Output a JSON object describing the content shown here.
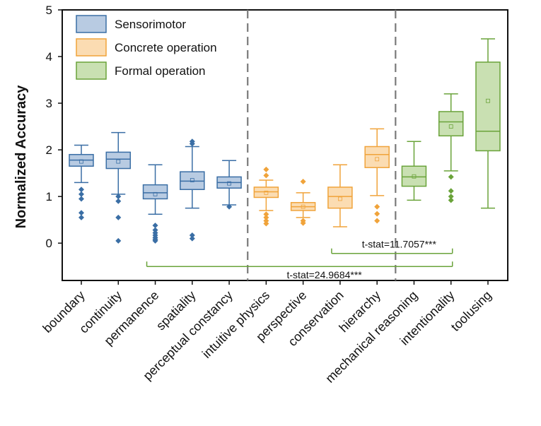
{
  "chart_data": {
    "type": "box",
    "ylabel": "Normalized Accuracy",
    "ylim": [
      -0.8,
      5
    ],
    "yticks": [
      0,
      1,
      2,
      3,
      4,
      5
    ],
    "grid": false,
    "legend_position": "top-left",
    "categories": [
      "boundary",
      "continuity",
      "permanence",
      "spatiality",
      "perceptual constancy",
      "intuitive physics",
      "perspective",
      "conservation",
      "hierarchy",
      "mechanical reasoning",
      "intentionality",
      "toolusing"
    ],
    "series": [
      {
        "name": "Sensorimotor",
        "color": "#3a6ea5",
        "fill": "#b8cbe2"
      },
      {
        "name": "Concrete operation",
        "color": "#f0a33a",
        "fill": "#fbdcb2"
      },
      {
        "name": "Formal operation",
        "color": "#6aa33a",
        "fill": "#c9e0b2"
      }
    ],
    "boxes": [
      {
        "category": "boundary",
        "group": 0,
        "whisker_low": 1.3,
        "q1": 1.65,
        "median": 1.78,
        "q3": 1.9,
        "whisker_high": 2.1,
        "mean": 1.75,
        "outliers": [
          1.15,
          1.05,
          0.95,
          0.65,
          0.55
        ]
      },
      {
        "category": "continuity",
        "group": 0,
        "whisker_low": 1.05,
        "q1": 1.6,
        "median": 1.8,
        "q3": 1.95,
        "whisker_high": 2.37,
        "mean": 1.75,
        "outliers": [
          1.0,
          0.9,
          0.55,
          0.05
        ]
      },
      {
        "category": "permanence",
        "group": 0,
        "whisker_low": 0.62,
        "q1": 0.95,
        "median": 1.08,
        "q3": 1.25,
        "whisker_high": 1.68,
        "mean": 1.05,
        "outliers": [
          0.38,
          0.28,
          0.22,
          0.17,
          0.12,
          0.08,
          0.05
        ]
      },
      {
        "category": "spatiality",
        "group": 0,
        "whisker_low": 0.75,
        "q1": 1.15,
        "median": 1.33,
        "q3": 1.53,
        "whisker_high": 2.07,
        "mean": 1.35,
        "outliers": [
          2.18,
          2.13,
          0.17,
          0.1
        ]
      },
      {
        "category": "perceptual constancy",
        "group": 0,
        "whisker_low": 0.82,
        "q1": 1.18,
        "median": 1.3,
        "q3": 1.42,
        "whisker_high": 1.77,
        "mean": 1.28,
        "outliers": [
          0.78
        ]
      },
      {
        "category": "intuitive physics",
        "group": 1,
        "whisker_low": 0.7,
        "q1": 0.98,
        "median": 1.1,
        "q3": 1.2,
        "whisker_high": 1.35,
        "mean": 1.08,
        "outliers": [
          1.58,
          1.45,
          0.62,
          0.55,
          0.48,
          0.42
        ]
      },
      {
        "category": "perspective",
        "group": 1,
        "whisker_low": 0.55,
        "q1": 0.7,
        "median": 0.78,
        "q3": 0.87,
        "whisker_high": 1.08,
        "mean": 0.78,
        "outliers": [
          1.32,
          0.48,
          0.43
        ]
      },
      {
        "category": "conservation",
        "group": 1,
        "whisker_low": 0.35,
        "q1": 0.75,
        "median": 1.0,
        "q3": 1.2,
        "whisker_high": 1.68,
        "mean": 0.95,
        "outliers": []
      },
      {
        "category": "hierarchy",
        "group": 1,
        "whisker_low": 1.02,
        "q1": 1.62,
        "median": 1.9,
        "q3": 2.07,
        "whisker_high": 2.45,
        "mean": 1.8,
        "outliers": [
          0.78,
          0.63,
          0.48
        ]
      },
      {
        "category": "mechanical reasoning",
        "group": 2,
        "whisker_low": 0.92,
        "q1": 1.22,
        "median": 1.42,
        "q3": 1.65,
        "whisker_high": 2.18,
        "mean": 1.43,
        "outliers": []
      },
      {
        "category": "intentionality",
        "group": 2,
        "whisker_low": 1.55,
        "q1": 2.3,
        "median": 2.6,
        "q3": 2.82,
        "whisker_high": 3.2,
        "mean": 2.5,
        "outliers": [
          1.42,
          1.12,
          1.0,
          0.92
        ]
      },
      {
        "category": "toolusing",
        "group": 2,
        "whisker_low": 0.75,
        "q1": 1.98,
        "median": 2.4,
        "q3": 3.88,
        "whisker_high": 4.38,
        "mean": 3.05,
        "outliers": []
      }
    ],
    "separators_after_index": [
      4,
      8
    ],
    "annotations": [
      {
        "text": "t-stat=11.7057***",
        "from_index": 7,
        "to_index": 10,
        "y": -0.22
      },
      {
        "text": "t-stat=24.9684***",
        "from_index": 2,
        "to_index": 10,
        "y": -0.5
      }
    ]
  }
}
